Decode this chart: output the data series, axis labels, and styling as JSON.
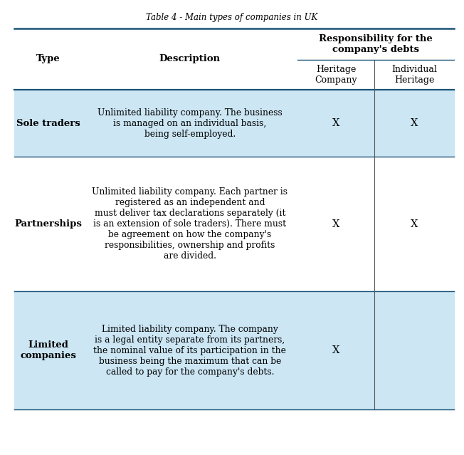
{
  "title": "Table 4 - Main types of companies in UK",
  "title_fontsize": 8.5,
  "title_style": "italic",
  "bg_color": "#ffffff",
  "light_blue": "#cce6f4",
  "header_line_color": "#1a5276",
  "rows": [
    {
      "type": "Sole traders",
      "description": "Unlimited liability company. The business\nis managed on an individual basis,\nbeing self-employed.",
      "heritage_company": "X",
      "individual_heritage": "X",
      "bg": "light_blue"
    },
    {
      "type": "Partnerships",
      "description": "Unlimited liability company. Each partner is\nregistered as an independent and\nmust deliver tax declarations separately (it\nis an extension of sole traders). There must\nbe agreement on how the company's\nresponsibilities, ownership and profits\nare divided.",
      "heritage_company": "X",
      "individual_heritage": "X",
      "bg": "white"
    },
    {
      "type": "Limited\ncompanies",
      "description": "Limited liability company. The company\nis a legal entity separate from its partners,\nthe nominal value of its participation in the\nbusiness being the maximum that can be\ncalled to pay for the company's debts.",
      "heritage_company": "X",
      "individual_heritage": "",
      "bg": "light_blue"
    }
  ]
}
